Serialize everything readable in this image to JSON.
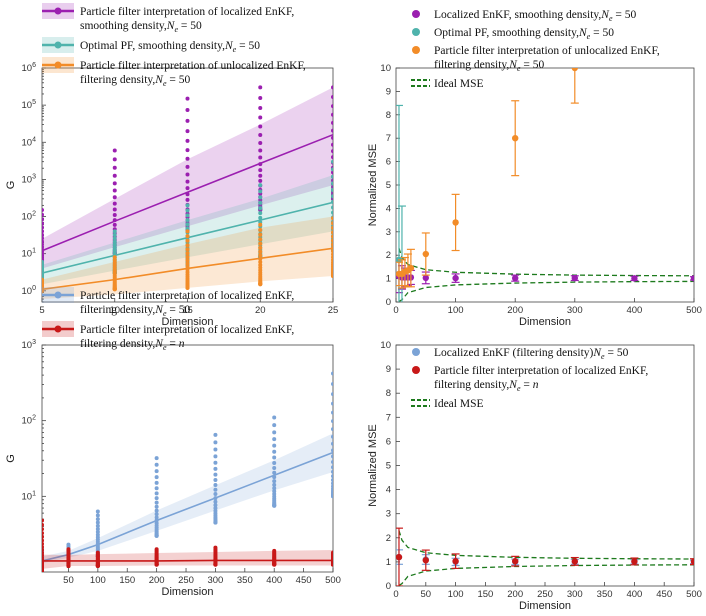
{
  "chart_data": [
    {
      "type": "scatter",
      "panel": "top-left",
      "xlabel": "Dimension",
      "ylabel": "G",
      "yscale": "log",
      "xlim": [
        5,
        25
      ],
      "ylim": [
        0.5,
        1000000
      ],
      "xticks": [
        "5",
        "10",
        "15",
        "20",
        "25"
      ],
      "yticks": [
        {
          "base": "10",
          "exp": "0",
          "value": 1
        },
        {
          "base": "10",
          "exp": "1",
          "value": 10
        },
        {
          "base": "10",
          "exp": "2",
          "value": 100
        },
        {
          "base": "10",
          "exp": "3",
          "value": 1000
        },
        {
          "base": "10",
          "exp": "4",
          "value": 10000
        },
        {
          "base": "10",
          "exp": "5",
          "value": 100000
        },
        {
          "base": "10",
          "exp": "6",
          "value": 1000000
        }
      ],
      "legend_position": "top",
      "series": [
        {
          "name": "loc_enkf",
          "legend_lines": [
            "Particle filter interpretation of localized EnKF,",
            "smoothing density, ",
            "N_e = 50"
          ],
          "legend_text": "smoothing density, ",
          "color": "#9b1fb0",
          "x": [
            5,
            10,
            15,
            20,
            25
          ],
          "fit": [
            12,
            75,
            450,
            2700,
            16000
          ],
          "lower": [
            4,
            15,
            55,
            200,
            700
          ],
          "upper": [
            25,
            300,
            3500,
            30000,
            300000
          ],
          "points_min": [
            5,
            10,
            40,
            150,
            300
          ],
          "points_max": [
            150,
            6000,
            150000,
            300000,
            300000
          ]
        },
        {
          "name": "opt_pf",
          "legend_lines": [
            "Optimal PF, smoothing density, ",
            "N_e = 50"
          ],
          "color": "#4fb3ac",
          "x": [
            5,
            10,
            15,
            20,
            25
          ],
          "fit": [
            3,
            9,
            27,
            80,
            240
          ],
          "lower": [
            1.5,
            3.5,
            8,
            18,
            40
          ],
          "upper": [
            5,
            20,
            80,
            300,
            1300
          ],
          "points_min": [
            2,
            3,
            5,
            8,
            12
          ],
          "points_max": [
            6,
            40,
            200,
            700,
            3000
          ]
        },
        {
          "name": "unloc_enkf",
          "legend_lines": [
            "Particle filter interpretation of unlocalized EnKF,",
            "filtering density, ",
            "N_e = 50"
          ],
          "legend_text": "filtering density, ",
          "color": "#f28c28",
          "x": [
            5,
            10,
            15,
            20,
            25
          ],
          "fit": [
            1.1,
            2,
            4,
            7.5,
            14
          ],
          "lower": [
            0.6,
            0.8,
            1.2,
            1.8,
            2.5
          ],
          "upper": [
            2,
            6,
            18,
            50,
            100
          ],
          "points_min": [
            1,
            1.1,
            1.2,
            1.5,
            2.5
          ],
          "points_max": [
            2,
            8,
            40,
            60,
            90
          ]
        }
      ]
    },
    {
      "type": "errorbar",
      "panel": "top-right",
      "xlabel": "Dimension",
      "ylabel": "Normalized MSE",
      "xlim": [
        0,
        500
      ],
      "ylim": [
        0,
        10
      ],
      "xticks": [
        "0",
        "100",
        "200",
        "300",
        "400",
        "500"
      ],
      "yticks": [
        "0",
        "1",
        "2",
        "3",
        "4",
        "5",
        "6",
        "7",
        "8",
        "9",
        "10"
      ],
      "legend_position": "top",
      "series": [
        {
          "name": "loc_enkf",
          "legend_lines": [
            "Localized EnKF,  smoothing density, ",
            "N_e = 50"
          ],
          "color": "#9b1fb0",
          "x": [
            5,
            10,
            15,
            20,
            25,
            50,
            100,
            200,
            300,
            400,
            500
          ],
          "y": [
            1.1,
            1.05,
            1.05,
            1.05,
            1.05,
            1.03,
            1.02,
            1.02,
            1.02,
            1.01,
            1.01
          ],
          "err": [
            0.7,
            0.5,
            0.4,
            0.35,
            0.3,
            0.25,
            0.18,
            0.13,
            0.1,
            0.09,
            0.07
          ]
        },
        {
          "name": "opt_pf",
          "legend_lines": [
            "Optimal PF, smoothing density, ",
            "N_e = 50"
          ],
          "color": "#4fb3ac",
          "x": [
            5,
            10
          ],
          "y": [
            1.8,
            1.2
          ],
          "err": [
            6.6,
            2.9
          ]
        },
        {
          "name": "unloc_enkf",
          "legend_lines": [
            "Particle filter interpretation of unlocalized EnKF,",
            "filtering density, ",
            "N_e = 50"
          ],
          "color": "#f28c28",
          "x": [
            5,
            10,
            15,
            20,
            25,
            50,
            100,
            200,
            300
          ],
          "y": [
            1.2,
            1.2,
            1.3,
            1.35,
            1.45,
            2.05,
            3.4,
            7.0,
            10.0
          ],
          "err": [
            0.5,
            0.6,
            0.6,
            0.7,
            0.8,
            0.9,
            1.2,
            1.6,
            1.5
          ]
        },
        {
          "name": "ideal_mse",
          "legend_lines": [
            "Ideal MSE"
          ],
          "color": "#1d7a1d",
          "x": [
            5,
            10,
            20,
            50,
            100,
            200,
            300,
            400,
            500
          ],
          "upper": [
            2.3,
            1.9,
            1.6,
            1.38,
            1.27,
            1.19,
            1.15,
            1.13,
            1.12
          ],
          "lower": [
            0.02,
            0.1,
            0.4,
            0.62,
            0.73,
            0.81,
            0.85,
            0.87,
            0.88
          ]
        }
      ]
    },
    {
      "type": "scatter",
      "panel": "bottom-left",
      "xlabel": "Dimension",
      "ylabel": "G",
      "yscale": "log",
      "xlim": [
        5,
        500
      ],
      "ylim": [
        1,
        1000
      ],
      "xticks": [
        "50",
        "100",
        "150",
        "200",
        "250",
        "300",
        "350",
        "400",
        "450",
        "500"
      ],
      "yticks": [
        {
          "base": "10",
          "exp": "1",
          "value": 10
        },
        {
          "base": "10",
          "exp": "2",
          "value": 100
        },
        {
          "base": "10",
          "exp": "3",
          "value": 1000
        }
      ],
      "legend_position": "top",
      "series": [
        {
          "name": "pf_loc_50",
          "legend_lines": [
            "Particle filter interpretation of localized EnKF,",
            "filtering density, ",
            "N_e = 50"
          ],
          "color": "#7ba3d6",
          "x": [
            5,
            50,
            100,
            200,
            300,
            400,
            500
          ],
          "fit": [
            1.4,
            1.7,
            2.3,
            4.8,
            9.5,
            19,
            38
          ],
          "lower": [
            1.3,
            1.55,
            1.9,
            3.5,
            6.5,
            12,
            21
          ],
          "upper": [
            1.6,
            1.9,
            2.8,
            6.5,
            14,
            30,
            68
          ],
          "points_min": [
            1.2,
            1.3,
            1.6,
            3.0,
            4.5,
            7.5,
            10
          ],
          "points_max": [
            2.0,
            2.3,
            6.3,
            32,
            65,
            110,
            420
          ]
        },
        {
          "name": "pf_loc_n",
          "legend_lines": [
            "Particle filter interpretation of localized EnKF,",
            "filtering density, ",
            "N_e = n"
          ],
          "color": "#c81818",
          "x": [
            5,
            50,
            100,
            200,
            300,
            400,
            500
          ],
          "fit": [
            1.4,
            1.4,
            1.4,
            1.4,
            1.42,
            1.42,
            1.42
          ],
          "lower": [
            1.1,
            1.2,
            1.2,
            1.22,
            1.22,
            1.22,
            1.22
          ],
          "upper": [
            1.7,
            1.68,
            1.72,
            1.78,
            1.84,
            1.9,
            1.95
          ],
          "points_min": [
            1.0,
            1.2,
            1.2,
            1.25,
            1.25,
            1.25,
            1.25
          ],
          "points_max": [
            4.8,
            2.0,
            1.8,
            2.0,
            2.1,
            1.9,
            1.8
          ]
        }
      ]
    },
    {
      "type": "errorbar",
      "panel": "bottom-right",
      "xlabel": "Dimension",
      "ylabel": "Normalized MSE",
      "xlim": [
        0,
        500
      ],
      "ylim": [
        0,
        10
      ],
      "xticks": [
        "0",
        "50",
        "100",
        "150",
        "200",
        "250",
        "300",
        "350",
        "400",
        "450",
        "500"
      ],
      "yticks": [
        "0",
        "1",
        "2",
        "3",
        "4",
        "5",
        "6",
        "7",
        "8",
        "9",
        "10"
      ],
      "legend_position": "top",
      "series": [
        {
          "name": "loc_enkf_filt",
          "legend_lines": [
            "Localized EnKF (filtering density) ",
            "N_e = 50"
          ],
          "color": "#7ba3d6",
          "x": [
            5,
            50,
            100,
            200,
            300,
            400,
            500
          ],
          "y": [
            1.2,
            1.1,
            1.0,
            1.0,
            1.0,
            1.0,
            1.0
          ],
          "err": [
            0.3,
            0.2,
            0.15,
            0.12,
            0.1,
            0.09,
            0.07
          ]
        },
        {
          "name": "pf_loc_n",
          "legend_lines": [
            "Particle filter interpretation of localized EnKF,",
            "filtering density, ",
            "N_e = n"
          ],
          "color": "#c81818",
          "x": [
            5,
            50,
            100,
            200,
            300,
            400,
            500
          ],
          "y": [
            1.2,
            1.07,
            1.03,
            1.03,
            1.02,
            1.02,
            1.01
          ],
          "err": [
            1.2,
            0.42,
            0.3,
            0.2,
            0.16,
            0.14,
            0.12
          ]
        },
        {
          "name": "ideal_mse",
          "legend_lines": [
            "Ideal MSE"
          ],
          "color": "#1d7a1d",
          "x": [
            5,
            10,
            20,
            50,
            100,
            200,
            300,
            400,
            500
          ],
          "upper": [
            2.3,
            1.9,
            1.6,
            1.38,
            1.27,
            1.19,
            1.15,
            1.13,
            1.12
          ],
          "lower": [
            0.02,
            0.1,
            0.4,
            0.62,
            0.73,
            0.81,
            0.85,
            0.87,
            0.88
          ]
        }
      ]
    }
  ]
}
